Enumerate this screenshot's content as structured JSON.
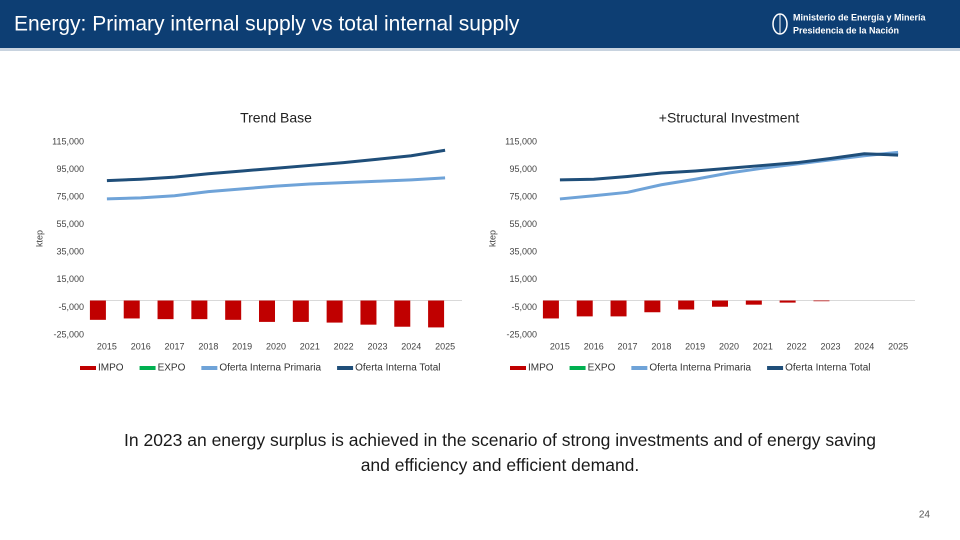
{
  "header": {
    "title": "Energy: Primary internal supply vs total internal supply",
    "logo_line1": "Ministerio de Energía y Minería",
    "logo_line2": "Presidencia de la Nación"
  },
  "chart_data": [
    {
      "type": "combo",
      "title": "Trend Base",
      "y_label": "ktep",
      "categories": [
        "2015",
        "2016",
        "2017",
        "2018",
        "2019",
        "2020",
        "2021",
        "2022",
        "2023",
        "2024",
        "2025"
      ],
      "ylim": [
        -25000,
        115000
      ],
      "yticks": [
        {
          "value": -25000,
          "label": "-25,000"
        },
        {
          "value": -5000,
          "label": "-5,000"
        },
        {
          "value": 15000,
          "label": "15,000"
        },
        {
          "value": 35000,
          "label": "35,000"
        },
        {
          "value": 55000,
          "label": "55,000"
        },
        {
          "value": 75000,
          "label": "75,000"
        },
        {
          "value": 95000,
          "label": "95,000"
        },
        {
          "value": 115000,
          "label": "115,000"
        }
      ],
      "series": [
        {
          "name": "IMPO",
          "type": "bar",
          "color": "#c00000",
          "values": [
            -14000,
            -13000,
            -13500,
            -13500,
            -14000,
            -15500,
            -15500,
            -16000,
            -17500,
            -19000,
            -19500
          ]
        },
        {
          "name": "EXPO",
          "type": "bar",
          "color": "#00b050",
          "values": [
            0,
            0,
            0,
            0,
            0,
            0,
            0,
            0,
            0,
            0,
            0
          ]
        },
        {
          "name": "Oferta Interna Primaria",
          "type": "line",
          "color": "#6fa3d8",
          "values": [
            73700,
            74500,
            76000,
            79000,
            81000,
            83000,
            84500,
            85500,
            86500,
            87500,
            89000
          ]
        },
        {
          "name": "Oferta Interna Total",
          "type": "line",
          "color": "#1f4e79",
          "values": [
            87000,
            88000,
            89500,
            92000,
            94000,
            96000,
            98000,
            100000,
            102500,
            105000,
            109000
          ]
        }
      ]
    },
    {
      "type": "combo",
      "title": "+Structural Investment",
      "y_label": "ktep",
      "categories": [
        "2015",
        "2016",
        "2017",
        "2018",
        "2019",
        "2020",
        "2021",
        "2022",
        "2023",
        "2024",
        "2025"
      ],
      "ylim": [
        -25000,
        115000
      ],
      "yticks": [
        {
          "value": -25000,
          "label": "-25,000"
        },
        {
          "value": -5000,
          "label": "-5,000"
        },
        {
          "value": 15000,
          "label": "15,000"
        },
        {
          "value": 35000,
          "label": "35,000"
        },
        {
          "value": 55000,
          "label": "55,000"
        },
        {
          "value": 75000,
          "label": "75,000"
        },
        {
          "value": 95000,
          "label": "95,000"
        },
        {
          "value": 115000,
          "label": "115,000"
        }
      ],
      "series": [
        {
          "name": "IMPO",
          "type": "bar",
          "color": "#c00000",
          "values": [
            -13000,
            -11500,
            -11500,
            -8500,
            -6500,
            -4500,
            -3000,
            -1500,
            -500,
            0,
            0
          ]
        },
        {
          "name": "EXPO",
          "type": "bar",
          "color": "#00b050",
          "values": [
            0,
            0,
            0,
            0,
            0,
            0,
            0,
            0,
            0,
            0,
            0
          ]
        },
        {
          "name": "Oferta Interna Primaria",
          "type": "line",
          "color": "#6fa3d8",
          "values": [
            73700,
            76000,
            78500,
            84000,
            88000,
            92500,
            96000,
            99000,
            102000,
            105000,
            107500
          ]
        },
        {
          "name": "Oferta Interna Total",
          "type": "line",
          "color": "#1f4e79",
          "values": [
            87500,
            88000,
            90000,
            92500,
            94000,
            96000,
            98000,
            100000,
            103000,
            106500,
            105500
          ]
        }
      ]
    }
  ],
  "caption": "In 2023 an energy surplus is achieved in the scenario of strong investments and of energy saving and efficiency and efficient demand.",
  "page_number": 24
}
